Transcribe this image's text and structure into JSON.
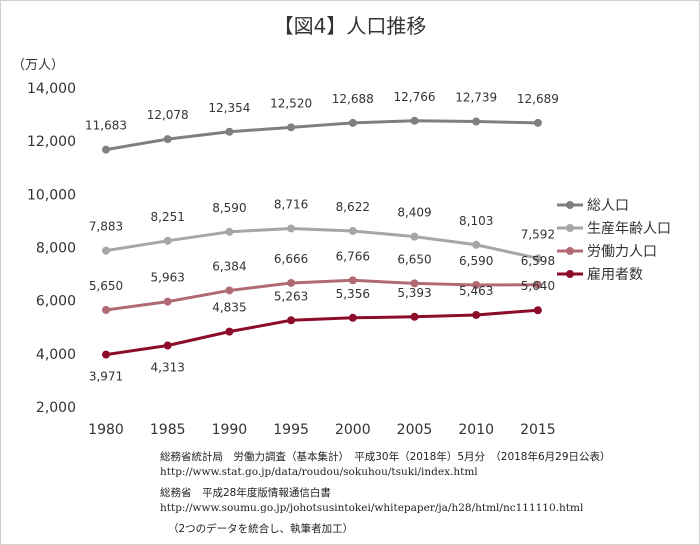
{
  "chart_data": {
    "type": "line",
    "title": "【図4】人口推移",
    "ylabel": "（万人）",
    "xlabel": "",
    "categories": [
      "1980",
      "1985",
      "1990",
      "1995",
      "2000",
      "2005",
      "2010",
      "2015"
    ],
    "ylim": [
      2000,
      14000
    ],
    "yticks": [
      "2,000",
      "4,000",
      "6,000",
      "8,000",
      "10,000",
      "12,000",
      "14,000"
    ],
    "yticks_values": [
      2000,
      4000,
      6000,
      8000,
      10000,
      12000,
      14000
    ],
    "grid": false,
    "legend": "right",
    "series": [
      {
        "name": "総人口",
        "color": "#7f7f7f",
        "values": [
          11683,
          12078,
          12354,
          12520,
          12688,
          12766,
          12739,
          12689
        ],
        "labels": [
          "11,683",
          "12,078",
          "12,354",
          "12,520",
          "12,688",
          "12,766",
          "12,739",
          "12,689"
        ],
        "label_pos": "above"
      },
      {
        "name": "生産年齢人口",
        "color": "#a6a6a6",
        "values": [
          7883,
          8251,
          8590,
          8716,
          8622,
          8409,
          8103,
          7592
        ],
        "labels": [
          "7,883",
          "8,251",
          "8,590",
          "8,716",
          "8,622",
          "8,409",
          "8,103",
          "7,592"
        ],
        "label_pos": "above"
      },
      {
        "name": "労働力人口",
        "color": "#b06a74",
        "values": [
          5650,
          5963,
          6384,
          6666,
          6766,
          6650,
          6590,
          6598
        ],
        "labels": [
          "5,650",
          "5,963",
          "6,384",
          "6,666",
          "6,766",
          "6,650",
          "6,590",
          "6,598"
        ],
        "label_pos": "above"
      },
      {
        "name": "雇用者数",
        "color": "#8b0d2a",
        "values": [
          3971,
          4313,
          4835,
          5263,
          5356,
          5393,
          5463,
          5640
        ],
        "labels": [
          "3,971",
          "4,313",
          "4,835",
          "5,263",
          "5,356",
          "5,393",
          "5,463",
          "5,640"
        ],
        "label_pos": "below"
      }
    ]
  },
  "source": {
    "line1": "総務省統計局　労働力調査（基本集計）　平成30年（2018年）5月分　（2018年6月29日公表）",
    "line2": "http://www.stat.go.jp/data/roudou/sokuhou/tsuki/index.html",
    "line3": "総務省　平成28年度版情報通信白書",
    "line4": "http://www.soumu.go.jp/johotsusintokei/whitepaper/ja/h28/html/nc111110.html",
    "line5": "（2つのデータを統合し、執筆者加工）"
  }
}
